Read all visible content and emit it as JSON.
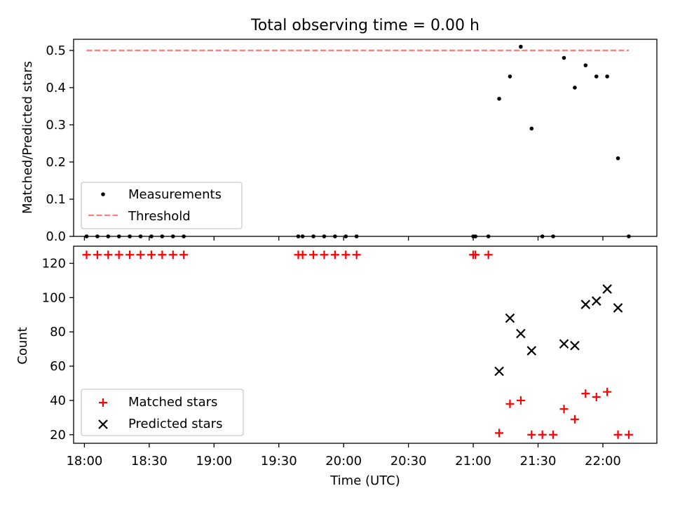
{
  "chart_data": [
    {
      "type": "scatter",
      "title": "Total observing time = 0.00 h",
      "ylabel": "Matched/Predicted stars",
      "xlabel": "",
      "xlim": [
        "17:55",
        "22:25"
      ],
      "ylim": [
        0,
        0.53
      ],
      "yticks": [
        0.0,
        0.1,
        0.2,
        0.3,
        0.4,
        0.5
      ],
      "ytick_labels": [
        "0.0",
        "0.1",
        "0.2",
        "0.3",
        "0.4",
        "0.5"
      ],
      "legend": {
        "position": "lower-left",
        "entries": [
          "Measurements",
          "Threshold"
        ]
      },
      "series": [
        {
          "name": "Measurements",
          "marker": "dot",
          "color": "#000000",
          "points": [
            [
              "18:01",
              0
            ],
            [
              "18:06",
              0
            ],
            [
              "18:11",
              0
            ],
            [
              "18:16",
              0
            ],
            [
              "18:21",
              0
            ],
            [
              "18:26",
              0
            ],
            [
              "18:31",
              0
            ],
            [
              "18:36",
              0
            ],
            [
              "18:41",
              0
            ],
            [
              "18:46",
              0
            ],
            [
              "19:39",
              0
            ],
            [
              "19:41",
              0
            ],
            [
              "19:46",
              0
            ],
            [
              "19:51",
              0
            ],
            [
              "19:56",
              0
            ],
            [
              "20:01",
              0
            ],
            [
              "20:06",
              0
            ],
            [
              "21:00",
              0
            ],
            [
              "21:01",
              0
            ],
            [
              "21:07",
              0
            ],
            [
              "21:12",
              0.37
            ],
            [
              "21:17",
              0.43
            ],
            [
              "21:22",
              0.51
            ],
            [
              "21:27",
              0.29
            ],
            [
              "21:32",
              0
            ],
            [
              "21:37",
              0
            ],
            [
              "21:42",
              0.48
            ],
            [
              "21:47",
              0.4
            ],
            [
              "21:52",
              0.46
            ],
            [
              "21:57",
              0.43
            ],
            [
              "22:02",
              0.43
            ],
            [
              "22:07",
              0.21
            ],
            [
              "22:12",
              0
            ]
          ]
        },
        {
          "name": "Threshold",
          "style": "dashed",
          "color": "#ff7f7f",
          "points": [
            [
              "18:01",
              0.5
            ],
            [
              "22:12",
              0.5
            ]
          ]
        }
      ]
    },
    {
      "type": "scatter",
      "title": "",
      "ylabel": "Count",
      "xlabel": "Time (UTC)",
      "xlim": [
        "17:55",
        "22:25"
      ],
      "ylim": [
        15,
        130
      ],
      "yticks": [
        20,
        40,
        60,
        80,
        100,
        120
      ],
      "ytick_labels": [
        "20",
        "40",
        "60",
        "80",
        "100",
        "120"
      ],
      "xticks": [
        "18:00",
        "18:30",
        "19:00",
        "19:30",
        "20:00",
        "20:30",
        "21:00",
        "21:30",
        "22:00"
      ],
      "xtick_labels": [
        "18:00",
        "18:30",
        "19:00",
        "19:30",
        "20:00",
        "20:30",
        "21:00",
        "21:30",
        "22:00"
      ],
      "legend": {
        "position": "lower-left",
        "entries": [
          "Matched stars",
          "Predicted stars"
        ]
      },
      "series": [
        {
          "name": "Matched stars",
          "marker": "plus",
          "color": "#ff0000",
          "points": [
            [
              "18:01",
              125
            ],
            [
              "18:06",
              125
            ],
            [
              "18:11",
              125
            ],
            [
              "18:16",
              125
            ],
            [
              "18:21",
              125
            ],
            [
              "18:26",
              125
            ],
            [
              "18:31",
              125
            ],
            [
              "18:36",
              125
            ],
            [
              "18:41",
              125
            ],
            [
              "18:46",
              125
            ],
            [
              "19:39",
              125
            ],
            [
              "19:41",
              125
            ],
            [
              "19:46",
              125
            ],
            [
              "19:51",
              125
            ],
            [
              "19:56",
              125
            ],
            [
              "20:01",
              125
            ],
            [
              "20:06",
              125
            ],
            [
              "21:00",
              125
            ],
            [
              "21:01",
              125
            ],
            [
              "21:07",
              125
            ],
            [
              "21:12",
              21
            ],
            [
              "21:17",
              38
            ],
            [
              "21:22",
              40
            ],
            [
              "21:27",
              20
            ],
            [
              "21:32",
              20
            ],
            [
              "21:37",
              20
            ],
            [
              "21:42",
              35
            ],
            [
              "21:47",
              29
            ],
            [
              "21:52",
              44
            ],
            [
              "21:57",
              42
            ],
            [
              "22:02",
              45
            ],
            [
              "22:07",
              20
            ],
            [
              "22:12",
              20
            ]
          ]
        },
        {
          "name": "Predicted stars",
          "marker": "x",
          "color": "#000000",
          "points": [
            [
              "21:12",
              57
            ],
            [
              "21:17",
              88
            ],
            [
              "21:22",
              79
            ],
            [
              "21:27",
              69
            ],
            [
              "21:42",
              73
            ],
            [
              "21:47",
              72
            ],
            [
              "21:52",
              96
            ],
            [
              "21:57",
              98
            ],
            [
              "22:02",
              105
            ],
            [
              "22:07",
              94
            ]
          ]
        }
      ]
    }
  ]
}
